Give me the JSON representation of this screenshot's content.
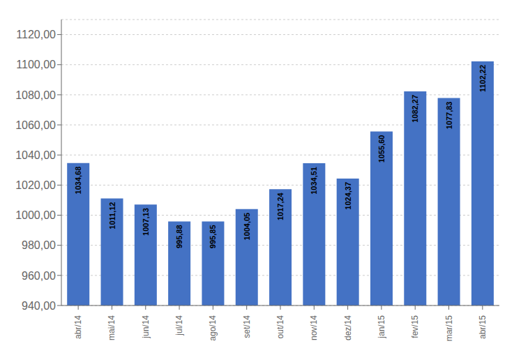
{
  "chart_data": {
    "type": "bar",
    "categories": [
      "abr/14",
      "mai/14",
      "jun/14",
      "jul/14",
      "ago/14",
      "set/14",
      "out/14",
      "nov/14",
      "dez/14",
      "jan/15",
      "fev/15",
      "mar/15",
      "abr/15"
    ],
    "values": [
      1034.68,
      1011.12,
      1007.13,
      995.88,
      995.85,
      1004.05,
      1017.24,
      1034.51,
      1024.37,
      1055.6,
      1082.27,
      1077.83,
      1102.22
    ],
    "value_labels": [
      "1034,68",
      "1011,12",
      "1007,13",
      "995,88",
      "995,85",
      "1004,05",
      "1017,24",
      "1034,51",
      "1024,37",
      "1055,60",
      "1082,27",
      "1077,83",
      "1102,22"
    ],
    "color": "#4472C4",
    "ylim": [
      940,
      1130
    ],
    "yticks": [
      {
        "value": 940,
        "label": "940,00"
      },
      {
        "value": 960,
        "label": "960,00"
      },
      {
        "value": 980,
        "label": "980,00"
      },
      {
        "value": 1000,
        "label": "1000,00"
      },
      {
        "value": 1020,
        "label": "1020,00"
      },
      {
        "value": 1040,
        "label": "1040,00"
      },
      {
        "value": 1060,
        "label": "1060,00"
      },
      {
        "value": 1080,
        "label": "1080,00"
      },
      {
        "value": 1100,
        "label": "1100,00"
      },
      {
        "value": 1120,
        "label": "1120,00"
      }
    ],
    "grid": true,
    "data_labels": true
  }
}
